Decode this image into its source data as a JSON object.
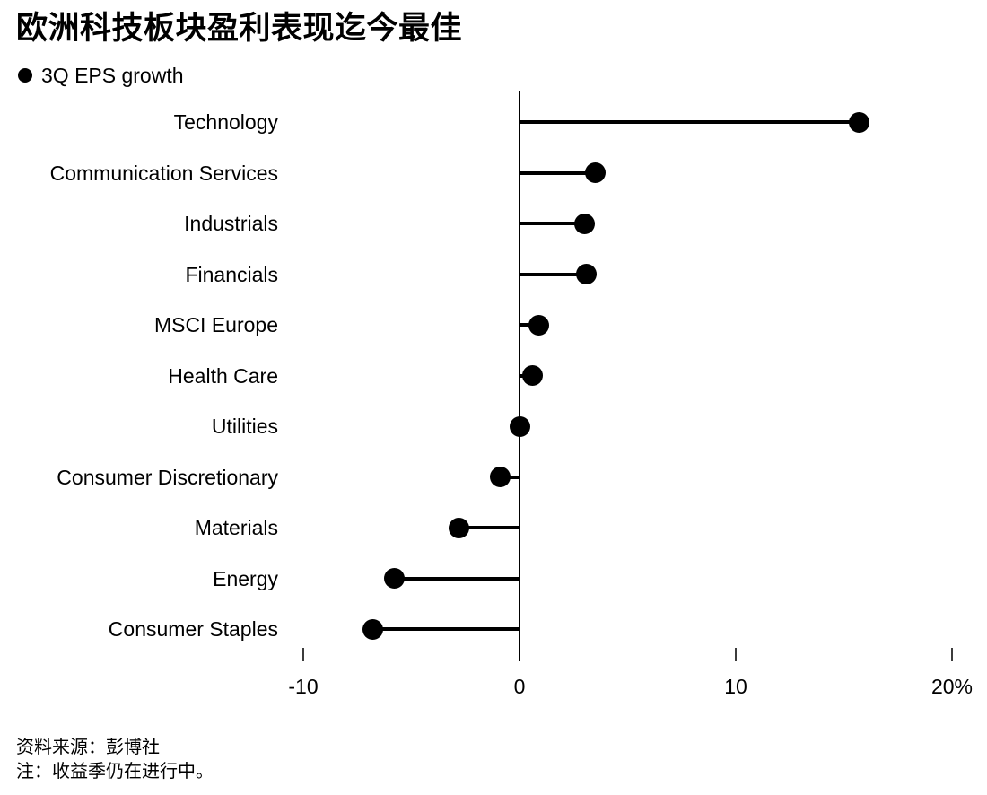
{
  "header": {
    "title": "欧洲科技板块盈利表现迄今最佳",
    "legend_label": "3Q EPS growth"
  },
  "chart_data": {
    "type": "bar",
    "variant": "horizontal-lollipop",
    "title": "欧洲科技板块盈利表现迄今最佳",
    "legend": [
      "3Q EPS growth"
    ],
    "legend_position": "top-left",
    "categories": [
      "Technology",
      "Communication Services",
      "Industrials",
      "Financials",
      "MSCI Europe",
      "Health Care",
      "Utilities",
      "Consumer Discretionary",
      "Materials",
      "Energy",
      "Consumer Staples"
    ],
    "values": [
      15.7,
      3.5,
      3.0,
      3.1,
      0.9,
      0.6,
      0.0,
      -0.9,
      -2.8,
      -5.8,
      -6.8
    ],
    "unit": "%",
    "xlabel": "",
    "ylabel": "",
    "xlim": [
      -12,
      21.5
    ],
    "x_ticks": [
      -10,
      0,
      10,
      20
    ],
    "x_tick_labels": [
      "-10",
      "0",
      "10",
      "20%"
    ],
    "grid": false
  },
  "footer": {
    "source": "资料来源：彭博社",
    "note": "注：收益季仍在进行中。"
  },
  "colors": {
    "ink": "#000000",
    "tick": "#3c3c3c",
    "background": "#ffffff"
  }
}
